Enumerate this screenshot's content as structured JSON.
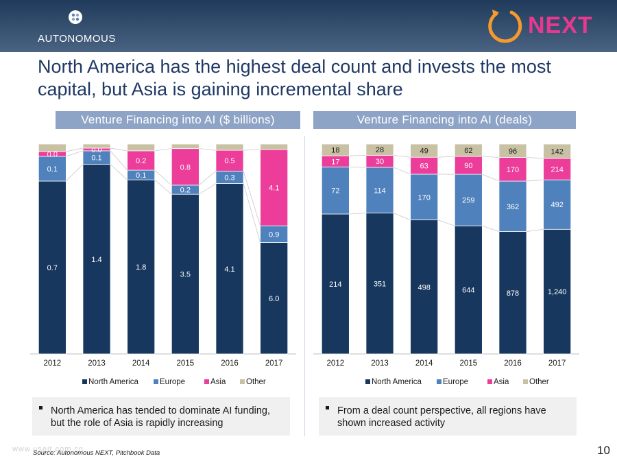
{
  "header": {
    "logo_left_text": "AUTONOMOUS",
    "logo_right_text": "NEXT"
  },
  "title": "North America has the highest deal count and invests the most capital, but Asia is gaining incremental share",
  "colors": {
    "North America": "#17375e",
    "Europe": "#4f81bd",
    "Asia": "#ec3d9a",
    "Other": "#c9c1a4"
  },
  "chart_data": [
    {
      "type": "bar",
      "stacked": true,
      "normalized_100pct": true,
      "title": "Venture Financing into AI ($ billions)",
      "categories": [
        "2012",
        "2013",
        "2014",
        "2015",
        "2016",
        "2017"
      ],
      "series": [
        {
          "name": "North America",
          "values": [
            0.7,
            1.4,
            1.8,
            3.5,
            4.1,
            6.0
          ],
          "labels": [
            "0.7",
            "1.4",
            "1.8",
            "3.5",
            "4.1",
            "6.0"
          ]
        },
        {
          "name": "Europe",
          "values": [
            0.1,
            0.1,
            0.1,
            0.2,
            0.3,
            0.9
          ],
          "labels": [
            "0.1",
            "0.1",
            "0.1",
            "0.2",
            "0.3",
            "0.9"
          ]
        },
        {
          "name": "Asia",
          "values": [
            0.02,
            0.02,
            0.2,
            0.8,
            0.5,
            4.1
          ],
          "labels": [
            "0.0",
            "0.0",
            "0.2",
            "0.8",
            "0.5",
            "4.1"
          ]
        },
        {
          "name": "Other",
          "values": [
            0.03,
            0.03,
            0.07,
            0.1,
            0.15,
            0.3
          ],
          "labels": [
            "",
            "",
            "",
            "",
            "",
            ""
          ]
        }
      ],
      "legend": [
        "North America",
        "Europe",
        "Asia",
        "Other"
      ],
      "legend_position": "bottom",
      "series_lines": true
    },
    {
      "type": "bar",
      "stacked": true,
      "normalized_100pct": true,
      "title": "Venture Financing into AI (deals)",
      "categories": [
        "2012",
        "2013",
        "2014",
        "2015",
        "2016",
        "2017"
      ],
      "series": [
        {
          "name": "North America",
          "values": [
            214,
            351,
            498,
            644,
            878,
            1240
          ],
          "labels": [
            "214",
            "351",
            "498",
            "644",
            "878",
            "1,240"
          ]
        },
        {
          "name": "Europe",
          "values": [
            72,
            114,
            170,
            259,
            362,
            492
          ],
          "labels": [
            "72",
            "114",
            "170",
            "259",
            "362",
            "492"
          ]
        },
        {
          "name": "Asia",
          "values": [
            17,
            30,
            63,
            90,
            170,
            214
          ],
          "labels": [
            "17",
            "30",
            "63",
            "90",
            "170",
            "214"
          ]
        },
        {
          "name": "Other",
          "values": [
            18,
            28,
            49,
            62,
            96,
            142
          ],
          "labels": [
            "18",
            "28",
            "49",
            "62",
            "96",
            "142"
          ]
        }
      ],
      "legend": [
        "North America",
        "Europe",
        "Asia",
        "Other"
      ],
      "legend_position": "bottom",
      "series_lines": true
    }
  ],
  "notes": [
    "North America has tended to dominate AI funding, but the role of Asia is rapidly increasing",
    "From a deal count perspective, all regions have shown increased activity"
  ],
  "footer": {
    "source": "Source: Autonomous NEXT, Pitchbook Data",
    "watermark": "www.useit.com.cn",
    "page_number": "10"
  }
}
